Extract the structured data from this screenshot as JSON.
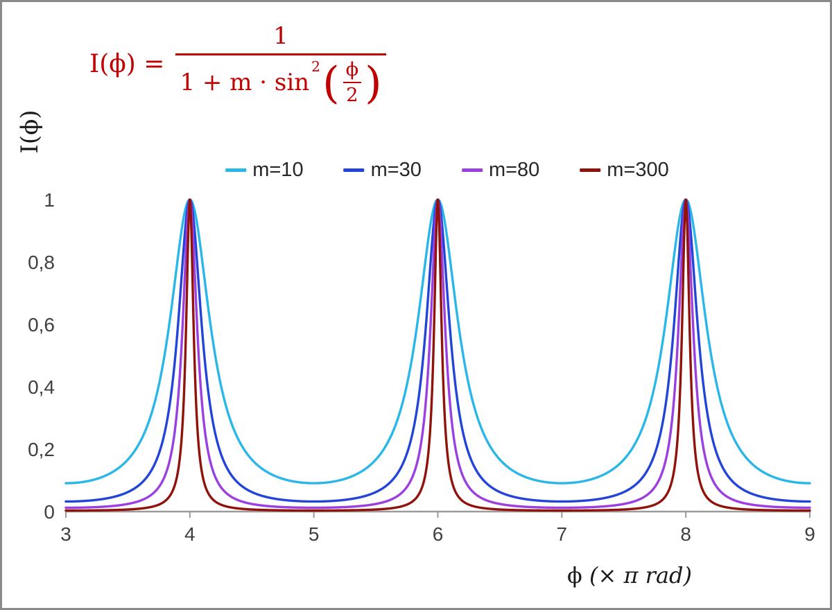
{
  "frame": {
    "border_color": "#8a8a8a",
    "background": "#ffffff"
  },
  "formula": {
    "lhs": "I(ϕ) =",
    "numerator": "1",
    "denominator_prefix": "1 + m · sin",
    "denominator_exponent": "2",
    "open_paren": "(",
    "inner_numerator": "ϕ",
    "inner_denominator": "2",
    "close_paren": ")",
    "color": "#C00000"
  },
  "axes": {
    "y_label": "I(ϕ)",
    "x_label_phi": "ϕ",
    "x_label_rest": "(× π rad)"
  },
  "chart_data": {
    "type": "line",
    "title": "",
    "function": "I(x) = 1 / (1 + m · sin²(x·π/2)), x expressed in units of π rad",
    "x_range": [
      3,
      9
    ],
    "y_range": [
      0,
      1
    ],
    "x_ticks": {
      "values": [
        3,
        4,
        5,
        6,
        7,
        8,
        9
      ],
      "labels": [
        "3",
        "4",
        "5",
        "6",
        "7",
        "8",
        "9"
      ]
    },
    "y_ticks": {
      "values": [
        0,
        0.2,
        0.4,
        0.6,
        0.8,
        1
      ],
      "labels": [
        "0",
        "0,2",
        "0,4",
        "0,6",
        "0,8",
        "1"
      ]
    },
    "peaks_at_x": [
      4,
      6,
      8
    ],
    "peak_value": 1,
    "series": [
      {
        "name": "m=10",
        "m": 10,
        "color": "#29B6E8",
        "value_at_x3": 0.091
      },
      {
        "name": "m=30",
        "m": 30,
        "color": "#2244D8",
        "value_at_x3": 0.032
      },
      {
        "name": "m=80",
        "m": 80,
        "color": "#9B3FE0",
        "value_at_x3": 0.012
      },
      {
        "name": "m=300",
        "m": 300,
        "color": "#8F130B",
        "value_at_x3": 0.003
      }
    ],
    "legend_position": "top-center",
    "grid": false,
    "axis_color": "#9a9a9a",
    "tick_label_color": "#3f3f3f"
  }
}
